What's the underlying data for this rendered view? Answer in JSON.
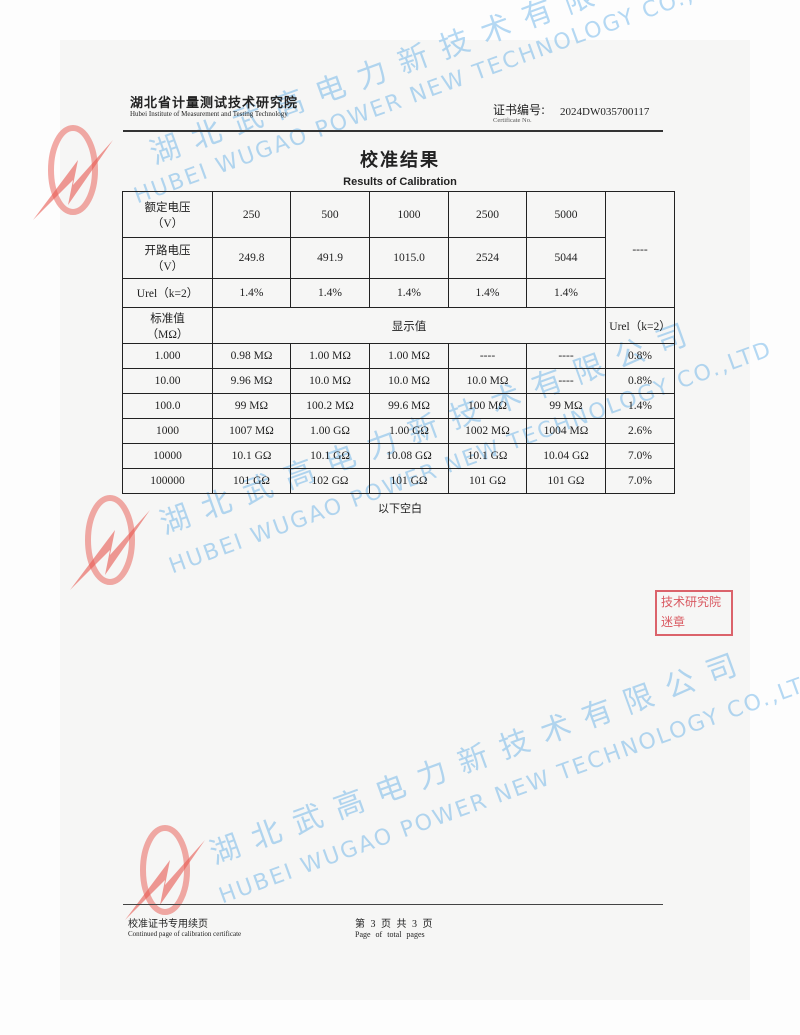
{
  "header": {
    "institute_cn": "湖北省计量测试技术研究院",
    "institute_en": "Hubei Institute of Measurement and Testing Technology",
    "cert_label_cn": "证书编号:",
    "cert_label_en": "Certificate No.",
    "cert_no": "2024DW035700117"
  },
  "title": {
    "cn": "校准结果",
    "en": "Results of Calibration"
  },
  "table": {
    "rated_voltage_label": "额定电压\n（V）",
    "open_voltage_label": "开路电压\n（V）",
    "urel_label": "Urel（k=2）",
    "rated_voltages": [
      "250",
      "500",
      "1000",
      "2500",
      "5000"
    ],
    "open_voltages": [
      "249.8",
      "491.9",
      "1015.0",
      "2524",
      "5044"
    ],
    "urel_values": [
      "1.4%",
      "1.4%",
      "1.4%",
      "1.4%",
      "1.4%"
    ],
    "top_right_cell": "----",
    "standard_label": "标准值\n（MΩ）",
    "display_label": "显示值",
    "urel_col_label": "Urel（k=2）",
    "rows": [
      {
        "standard": "1.000",
        "values": [
          "0.98 MΩ",
          "1.00 MΩ",
          "1.00 MΩ",
          "----",
          "----"
        ],
        "urel": "0.8%"
      },
      {
        "standard": "10.00",
        "values": [
          "9.96 MΩ",
          "10.0 MΩ",
          "10.0 MΩ",
          "10.0 MΩ",
          "----"
        ],
        "urel": "0.8%"
      },
      {
        "standard": "100.0",
        "values": [
          "99 MΩ",
          "100.2 MΩ",
          "99.6 MΩ",
          "100 MΩ",
          "99 MΩ"
        ],
        "urel": "1.4%"
      },
      {
        "standard": "1000",
        "values": [
          "1007 MΩ",
          "1.00 GΩ",
          "1.00 GΩ",
          "1002 MΩ",
          "1004 MΩ"
        ],
        "urel": "2.6%"
      },
      {
        "standard": "10000",
        "values": [
          "10.1 GΩ",
          "10.1 GΩ",
          "10.08 GΩ",
          "10.1 GΩ",
          "10.04 GΩ"
        ],
        "urel": "7.0%"
      },
      {
        "standard": "100000",
        "values": [
          "101 GΩ",
          "102 GΩ",
          "101 GΩ",
          "101 GΩ",
          "101 GΩ"
        ],
        "urel": "7.0%"
      }
    ]
  },
  "blank_note": "以下空白",
  "stamp": {
    "line1": "技术研究院",
    "line2": "迷章"
  },
  "watermark": {
    "cn": "湖北武高电力新技术有限公司",
    "en": "HUBEI WUGAO POWER NEW TECHNOLOGY CO.,LTD"
  },
  "footer": {
    "cn": "校准证书专用续页",
    "en": "Continued page of calibration certificate",
    "page_cn": "第 3 页 共 3 页",
    "page_en": "Page of total pages"
  },
  "colors": {
    "watermark": "#5aaae6",
    "logo": "#e8574f",
    "stamp": "#d2323c"
  }
}
